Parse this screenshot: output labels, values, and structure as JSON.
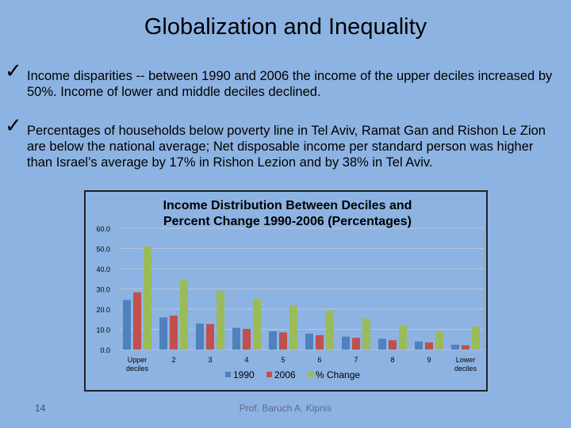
{
  "slide": {
    "title": "Globalization and Inequality",
    "bullets": [
      "Income disparities -- between 1990 and 2006 the income of the upper deciles increased by 50%. Income of lower and middle deciles declined.",
      "Percentages of households below poverty line in Tel Aviv, Ramat Gan and Rishon Le Zion are below the national average; Net disposable income per standard person was higher than Israel’s average by 17% in Rishon Lezion and by 38% in Tel Aviv."
    ],
    "check_glyph": "✓",
    "page_number": "14",
    "author": "Prof. Baruch A. Kipnis"
  },
  "chart_data": {
    "type": "bar",
    "title_lines": [
      "Income Distribution Between Deciles and",
      "Percent  Change 1990-2006 (Percentages)"
    ],
    "categories": [
      [
        "Upper",
        "deciles"
      ],
      [
        "2"
      ],
      [
        "3"
      ],
      [
        "4"
      ],
      [
        "5"
      ],
      [
        "6"
      ],
      [
        "7"
      ],
      [
        "8"
      ],
      [
        "9"
      ],
      [
        "Lower",
        "deciles"
      ]
    ],
    "series": [
      {
        "name": "1990",
        "color": "#4f81bd",
        "values": [
          24.5,
          15.9,
          12.8,
          10.7,
          9.0,
          7.9,
          6.4,
          5.3,
          4.0,
          2.4
        ]
      },
      {
        "name": "2006",
        "color": "#c0504d",
        "values": [
          28.3,
          16.8,
          12.6,
          10.2,
          8.5,
          7.1,
          5.8,
          4.6,
          3.5,
          2.1
        ]
      },
      {
        "name": "% Change",
        "color": "#9bbb59",
        "values": [
          51.0,
          34.7,
          29.0,
          25.2,
          21.9,
          19.4,
          15.4,
          11.8,
          8.6,
          11.4
        ]
      }
    ],
    "y_ticks": [
      "0.0",
      "10.0",
      "20.0",
      "30.0",
      "40.0",
      "50.0",
      "60.0"
    ],
    "ylim": [
      0,
      60
    ],
    "legend_position": "bottom"
  }
}
